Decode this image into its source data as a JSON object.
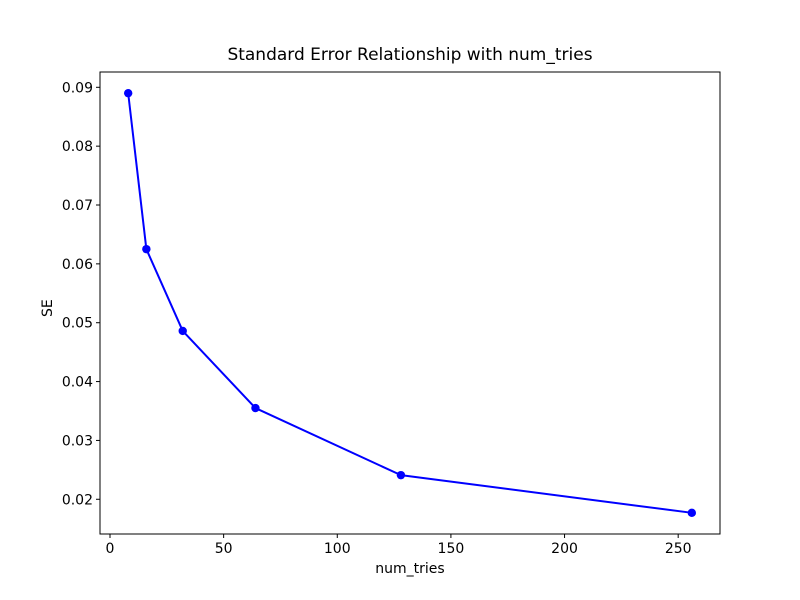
{
  "chart_data": {
    "type": "line",
    "title": "Standard Error Relationship with num_tries",
    "xlabel": "num_tries",
    "ylabel": "SE",
    "x": [
      8,
      16,
      32,
      64,
      128,
      256
    ],
    "y": [
      0.089,
      0.0625,
      0.0486,
      0.0355,
      0.0241,
      0.0177
    ],
    "xlim": [
      -4.4,
      268.4
    ],
    "ylim": [
      0.0141,
      0.0926
    ],
    "x_tick_values": [
      0,
      50,
      100,
      150,
      200,
      250
    ],
    "x_tick_labels": [
      "0",
      "50",
      "100",
      "150",
      "200",
      "250"
    ],
    "y_tick_values": [
      0.02,
      0.03,
      0.04,
      0.05,
      0.06,
      0.07,
      0.08,
      0.09
    ],
    "y_tick_labels": [
      "0.02",
      "0.03",
      "0.04",
      "0.05",
      "0.06",
      "0.07",
      "0.08",
      "0.09"
    ],
    "grid": false,
    "legend": null,
    "line_color": "#0000ff",
    "marker": "circle",
    "axis_color": "#000000",
    "background_color": "#ffffff"
  }
}
